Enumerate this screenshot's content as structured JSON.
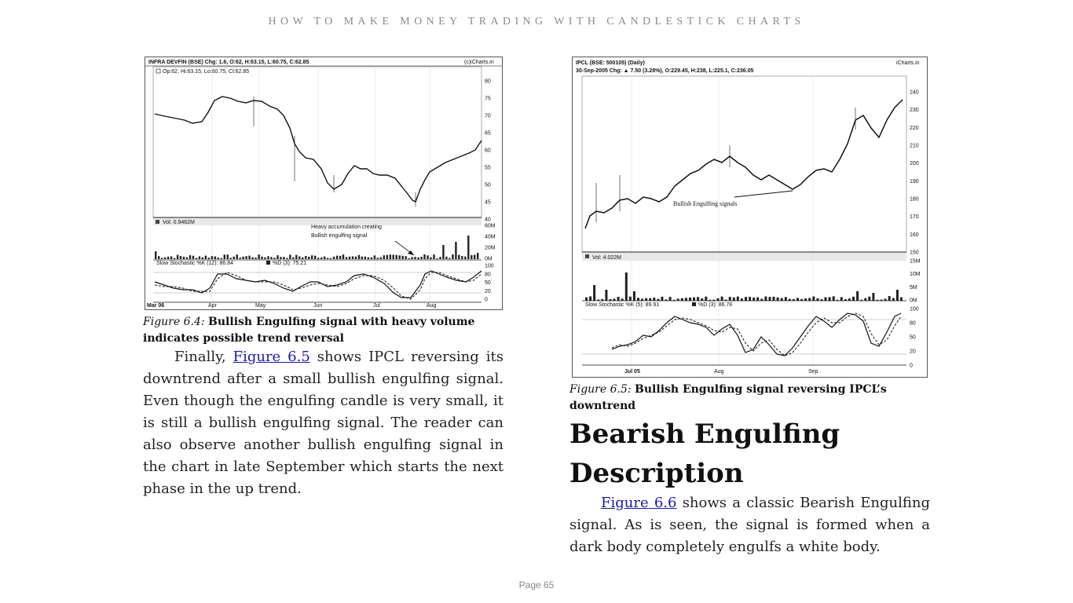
{
  "header": "HOW TO MAKE MONEY TRADING WITH CANDLESTICK CHARTS",
  "page_label": "Page 65",
  "figure_4": {
    "title": "INFRA DEVFIN (BSE) Chg: 1.6, O:62, H:63.15, L:60.75, C:62.85",
    "source": "(c)iCharts.in",
    "legend": "Op:62, Hi:63.15, Lo:60.75, Cl:62.85",
    "price_ticks": [
      "80",
      "75",
      "70",
      "65",
      "60",
      "55",
      "50",
      "45",
      "40"
    ],
    "volume_label": "Vol: 0.9462M",
    "volume_ticks": [
      "60M",
      "40M",
      "20M",
      "0M"
    ],
    "annotation_line1": "Heavy accumulation creating",
    "annotation_line2": "Bullish engulfing signal",
    "stoch_k": "Slow Stochastic %K (12): 86.84",
    "stoch_d": "%D (3): 75.21",
    "stoch_ticks": [
      "100",
      "80",
      "50",
      "20",
      "0"
    ],
    "x_labels": [
      "Mar 06",
      "Apr",
      "May",
      "Jun",
      "Jul",
      "Aug"
    ],
    "caption_label": "Figure 6.4:",
    "caption_text": "Bullish Engulfing signal with heavy volume indicates possible trend reversal"
  },
  "figure_5": {
    "title": "IPCL (BSE: 500105) (Daily)",
    "subtitle": "30-Sep-2005 Chg: ▲ 7.50 (3.28%), O:229.45, H:238, L:225.1, C:236.05",
    "source": "iCharts.in",
    "price_ticks": [
      "240",
      "230",
      "220",
      "210",
      "200",
      "190",
      "180",
      "170",
      "160",
      "150"
    ],
    "annotation": "Bullish Engulfing signals",
    "volume_label": "Vol: 4.022M",
    "volume_ticks": [
      "15M",
      "10M",
      "5M",
      "0M"
    ],
    "stoch_k": "Slow Stochastic %K (5): 89.91",
    "stoch_d": "%D (3): 86.78",
    "stoch_ticks": [
      "100",
      "80",
      "50",
      "20",
      "0"
    ],
    "x_labels": [
      "Jul 05",
      "Aug",
      "Sep"
    ],
    "caption_label": "Figure 6.5:",
    "caption_text": "Bullish Engulfing signal reversing IPCL’s downtrend"
  },
  "left_paragraph": {
    "lead": "Finally,",
    "link": "Figure 6.5",
    "rest": "shows IPCL reversing its downtrend after a small bullish engulfing signal. Even though the engulfing candle is very small, it is still a bullish engulfing signal. The reader can also observe another bullish engulfing signal in the chart in late September which starts the next phase in the up trend."
  },
  "heading": "Bearish Engulfing Description",
  "right_paragraph": {
    "link": "Figure 6.6",
    "rest": "shows a classic Bearish Engulfing signal. As is seen, the signal is formed when a dark body completely engulfs a white body."
  }
}
